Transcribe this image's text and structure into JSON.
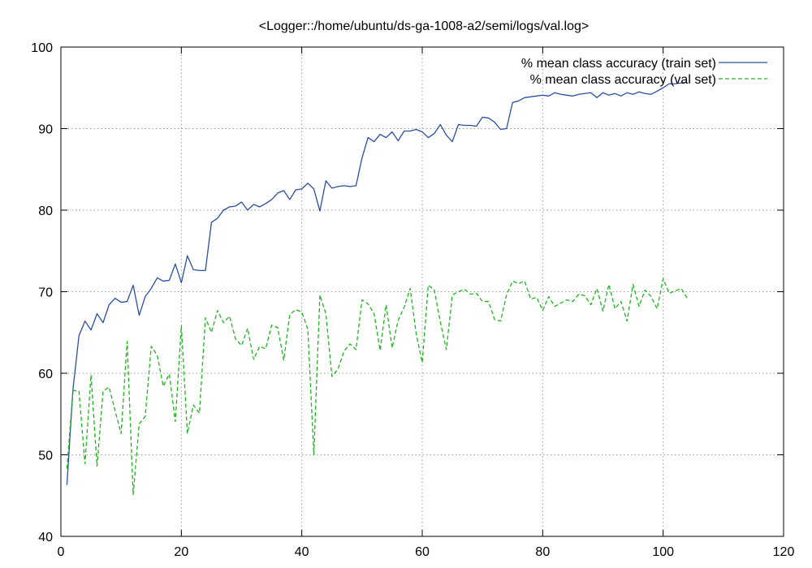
{
  "chart_data": {
    "type": "line",
    "title": "<Logger::/home/ubuntu/ds-ga-1008-a2/semi/logs/val.log>",
    "xlabel": "",
    "ylabel": "",
    "xlim": [
      0,
      120
    ],
    "ylim": [
      40,
      100
    ],
    "xticks": [
      0,
      20,
      40,
      60,
      80,
      100,
      120
    ],
    "yticks": [
      40,
      50,
      60,
      70,
      80,
      90,
      100
    ],
    "grid": true,
    "legend_position": "top-right",
    "series": [
      {
        "name": "% mean class accuracy (train set)",
        "color": "#2a4fa0",
        "dash": "solid",
        "x": [
          1,
          2,
          3,
          4,
          5,
          6,
          7,
          8,
          9,
          10,
          11,
          12,
          13,
          14,
          15,
          16,
          17,
          18,
          19,
          20,
          21,
          22,
          23,
          24,
          25,
          26,
          27,
          28,
          29,
          30,
          31,
          32,
          33,
          34,
          35,
          36,
          37,
          38,
          39,
          40,
          41,
          42,
          43,
          44,
          45,
          46,
          47,
          48,
          49,
          50,
          51,
          52,
          53,
          54,
          55,
          56,
          57,
          58,
          59,
          60,
          61,
          62,
          63,
          64,
          65,
          66,
          67,
          68,
          69,
          70,
          71,
          72,
          73,
          74,
          75,
          76,
          77,
          78,
          79,
          80,
          81,
          82,
          83,
          84,
          85,
          86,
          87,
          88,
          89,
          90,
          91,
          92,
          93,
          94,
          95,
          96,
          97,
          98,
          99,
          100,
          101,
          102,
          103,
          104
        ],
        "y": [
          46.3,
          58.0,
          64.6,
          66.4,
          65.3,
          67.3,
          66.2,
          68.4,
          69.2,
          68.7,
          68.8,
          70.8,
          67.1,
          69.4,
          70.4,
          71.7,
          71.3,
          71.4,
          73.4,
          71.1,
          74.4,
          72.7,
          72.6,
          72.6,
          78.5,
          79.0,
          80.0,
          80.4,
          80.5,
          81.0,
          80.0,
          80.7,
          80.4,
          80.8,
          81.3,
          82.1,
          82.4,
          81.3,
          82.5,
          82.6,
          83.3,
          82.6,
          79.9,
          83.6,
          82.7,
          82.9,
          83.0,
          82.9,
          83.0,
          86.4,
          88.9,
          88.4,
          89.3,
          88.9,
          89.6,
          88.5,
          89.7,
          89.7,
          89.9,
          89.6,
          88.9,
          89.4,
          90.5,
          89.2,
          88.4,
          90.5,
          90.4,
          90.4,
          90.3,
          91.4,
          91.3,
          90.8,
          89.9,
          90.0,
          93.2,
          93.4,
          93.8,
          93.9,
          94.0,
          94.1,
          94.0,
          94.4,
          94.2,
          94.1,
          94.0,
          94.2,
          94.3,
          94.4,
          93.8,
          94.4,
          94.1,
          94.3,
          94.0,
          94.4,
          94.2,
          94.5,
          94.3,
          94.2,
          94.6,
          95.0,
          95.5,
          95.5,
          95.6,
          95.7
        ]
      },
      {
        "name": "% mean class accuracy (val set)",
        "color": "#1fb51f",
        "dash": "dashed",
        "x": [
          1,
          2,
          3,
          4,
          5,
          6,
          7,
          8,
          9,
          10,
          11,
          12,
          13,
          14,
          15,
          16,
          17,
          18,
          19,
          20,
          21,
          22,
          23,
          24,
          25,
          26,
          27,
          28,
          29,
          30,
          31,
          32,
          33,
          34,
          35,
          36,
          37,
          38,
          39,
          40,
          41,
          42,
          43,
          44,
          45,
          46,
          47,
          48,
          49,
          50,
          51,
          52,
          53,
          54,
          55,
          56,
          57,
          58,
          59,
          60,
          61,
          62,
          63,
          64,
          65,
          66,
          67,
          68,
          69,
          70,
          71,
          72,
          73,
          74,
          75,
          76,
          77,
          78,
          79,
          80,
          81,
          82,
          83,
          84,
          85,
          86,
          87,
          88,
          89,
          90,
          91,
          92,
          93,
          94,
          95,
          96,
          97,
          98,
          99,
          100,
          101,
          102,
          103,
          104
        ],
        "y": [
          48.3,
          57.9,
          57.8,
          48.9,
          59.8,
          48.6,
          57.8,
          58.3,
          55.4,
          52.6,
          63.9,
          45.1,
          53.8,
          54.7,
          63.3,
          62.2,
          58.4,
          59.9,
          54.1,
          65.8,
          52.6,
          56.1,
          55.1,
          66.8,
          65.0,
          67.7,
          66.2,
          67.0,
          64.2,
          63.4,
          65.5,
          61.7,
          63.3,
          63.0,
          65.9,
          65.6,
          61.6,
          67.2,
          67.8,
          67.5,
          65.4,
          50.0,
          69.6,
          67.3,
          59.6,
          60.5,
          62.7,
          63.6,
          62.9,
          69.0,
          68.5,
          67.3,
          62.8,
          68.4,
          63.1,
          66.5,
          68.1,
          70.4,
          64.8,
          61.3,
          70.8,
          70.2,
          66.3,
          62.9,
          69.6,
          70.0,
          70.3,
          69.7,
          69.8,
          68.8,
          68.8,
          66.6,
          66.4,
          69.6,
          71.3,
          71.0,
          71.3,
          69.1,
          69.3,
          67.7,
          69.4,
          68.2,
          68.6,
          69.0,
          68.8,
          69.7,
          69.5,
          68.4,
          70.4,
          67.6,
          70.9,
          67.9,
          68.8,
          66.4,
          70.9,
          68.2,
          70.2,
          69.4,
          67.9,
          71.6,
          69.8,
          70.1,
          70.4,
          69.2
        ]
      }
    ]
  }
}
